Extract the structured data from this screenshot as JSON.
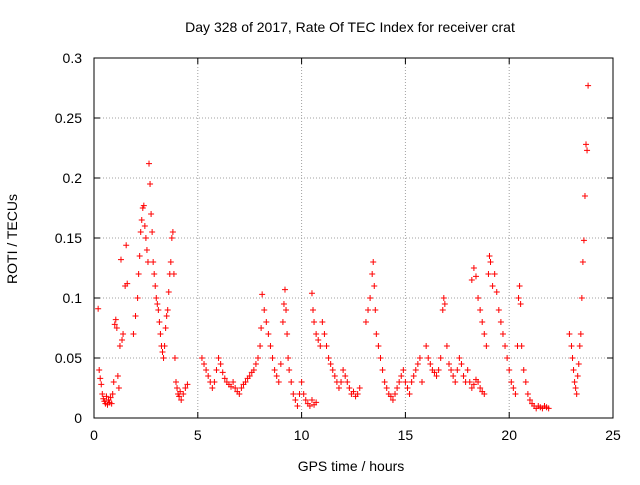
{
  "chart_data": {
    "type": "scatter",
    "title": "Day 328 of 2017, Rate Of TEC Index for receiver crat",
    "xlabel": "GPS time / hours",
    "ylabel": "ROTI / TECUs",
    "xlim": [
      0,
      25
    ],
    "ylim": [
      0,
      0.3
    ],
    "x_ticks": [
      0,
      5,
      10,
      15,
      20,
      25
    ],
    "x_tick_labels": [
      "0",
      "5",
      "10",
      "15",
      "20",
      "25"
    ],
    "y_ticks": [
      0,
      0.05,
      0.1,
      0.15,
      0.2,
      0.25,
      0.3
    ],
    "y_tick_labels": [
      "0",
      "0.05",
      "0.1",
      "0.15",
      "0.2",
      "0.25",
      "0.3"
    ],
    "grid": true,
    "legend": "none",
    "marker": "+",
    "series": [
      {
        "color": "#ff0000",
        "points": [
          [
            0.2,
            0.091
          ],
          [
            0.25,
            0.04
          ],
          [
            0.3,
            0.033
          ],
          [
            0.35,
            0.028
          ],
          [
            0.4,
            0.02
          ],
          [
            0.45,
            0.016
          ],
          [
            0.5,
            0.014
          ],
          [
            0.55,
            0.012
          ],
          [
            0.6,
            0.018
          ],
          [
            0.65,
            0.011
          ],
          [
            0.7,
            0.015
          ],
          [
            0.75,
            0.013
          ],
          [
            0.8,
            0.017
          ],
          [
            0.85,
            0.012
          ],
          [
            0.9,
            0.02
          ],
          [
            0.95,
            0.03
          ],
          [
            1.0,
            0.078
          ],
          [
            1.05,
            0.082
          ],
          [
            1.1,
            0.075
          ],
          [
            1.15,
            0.035
          ],
          [
            1.2,
            0.025
          ],
          [
            1.25,
            0.06
          ],
          [
            1.3,
            0.132
          ],
          [
            1.35,
            0.065
          ],
          [
            1.4,
            0.07
          ],
          [
            1.5,
            0.11
          ],
          [
            1.55,
            0.144
          ],
          [
            1.6,
            0.112
          ],
          [
            1.9,
            0.07
          ],
          [
            2.0,
            0.085
          ],
          [
            2.1,
            0.1
          ],
          [
            2.15,
            0.12
          ],
          [
            2.2,
            0.135
          ],
          [
            2.25,
            0.155
          ],
          [
            2.3,
            0.165
          ],
          [
            2.35,
            0.175
          ],
          [
            2.4,
            0.177
          ],
          [
            2.45,
            0.16
          ],
          [
            2.5,
            0.15
          ],
          [
            2.55,
            0.14
          ],
          [
            2.6,
            0.13
          ],
          [
            2.65,
            0.212
          ],
          [
            2.7,
            0.195
          ],
          [
            2.75,
            0.17
          ],
          [
            2.8,
            0.155
          ],
          [
            2.85,
            0.13
          ],
          [
            2.9,
            0.12
          ],
          [
            2.95,
            0.11
          ],
          [
            3.0,
            0.1
          ],
          [
            3.05,
            0.095
          ],
          [
            3.1,
            0.09
          ],
          [
            3.15,
            0.08
          ],
          [
            3.2,
            0.07
          ],
          [
            3.25,
            0.06
          ],
          [
            3.3,
            0.055
          ],
          [
            3.35,
            0.05
          ],
          [
            3.4,
            0.06
          ],
          [
            3.45,
            0.075
          ],
          [
            3.5,
            0.085
          ],
          [
            3.55,
            0.09
          ],
          [
            3.6,
            0.105
          ],
          [
            3.65,
            0.12
          ],
          [
            3.7,
            0.13
          ],
          [
            3.75,
            0.15
          ],
          [
            3.8,
            0.155
          ],
          [
            3.85,
            0.12
          ],
          [
            3.9,
            0.05
          ],
          [
            3.95,
            0.03
          ],
          [
            4.0,
            0.025
          ],
          [
            4.05,
            0.02
          ],
          [
            4.1,
            0.018
          ],
          [
            4.15,
            0.022
          ],
          [
            4.2,
            0.015
          ],
          [
            4.3,
            0.02
          ],
          [
            4.4,
            0.025
          ],
          [
            4.5,
            0.028
          ],
          [
            5.2,
            0.05
          ],
          [
            5.3,
            0.045
          ],
          [
            5.4,
            0.04
          ],
          [
            5.5,
            0.035
          ],
          [
            5.6,
            0.03
          ],
          [
            5.7,
            0.025
          ],
          [
            5.8,
            0.03
          ],
          [
            5.9,
            0.04
          ],
          [
            6.0,
            0.05
          ],
          [
            6.1,
            0.045
          ],
          [
            6.2,
            0.038
          ],
          [
            6.3,
            0.033
          ],
          [
            6.4,
            0.03
          ],
          [
            6.5,
            0.028
          ],
          [
            6.6,
            0.026
          ],
          [
            6.7,
            0.03
          ],
          [
            6.8,
            0.025
          ],
          [
            6.9,
            0.022
          ],
          [
            7.0,
            0.02
          ],
          [
            7.1,
            0.025
          ],
          [
            7.2,
            0.028
          ],
          [
            7.3,
            0.03
          ],
          [
            7.4,
            0.033
          ],
          [
            7.5,
            0.035
          ],
          [
            7.6,
            0.038
          ],
          [
            7.7,
            0.04
          ],
          [
            7.8,
            0.045
          ],
          [
            7.9,
            0.05
          ],
          [
            8.0,
            0.06
          ],
          [
            8.05,
            0.075
          ],
          [
            8.1,
            0.103
          ],
          [
            8.2,
            0.09
          ],
          [
            8.3,
            0.08
          ],
          [
            8.4,
            0.07
          ],
          [
            8.5,
            0.06
          ],
          [
            8.6,
            0.05
          ],
          [
            8.7,
            0.04
          ],
          [
            8.8,
            0.035
          ],
          [
            8.9,
            0.03
          ],
          [
            9.0,
            0.045
          ],
          [
            9.1,
            0.08
          ],
          [
            9.15,
            0.095
          ],
          [
            9.2,
            0.107
          ],
          [
            9.25,
            0.09
          ],
          [
            9.3,
            0.07
          ],
          [
            9.35,
            0.05
          ],
          [
            9.4,
            0.04
          ],
          [
            9.5,
            0.03
          ],
          [
            9.6,
            0.02
          ],
          [
            9.7,
            0.015
          ],
          [
            9.8,
            0.01
          ],
          [
            9.9,
            0.02
          ],
          [
            10.0,
            0.03
          ],
          [
            10.1,
            0.02
          ],
          [
            10.2,
            0.015
          ],
          [
            10.3,
            0.012
          ],
          [
            10.4,
            0.01
          ],
          [
            10.5,
            0.015
          ],
          [
            10.6,
            0.011
          ],
          [
            10.7,
            0.013
          ],
          [
            10.5,
            0.104
          ],
          [
            10.55,
            0.09
          ],
          [
            10.6,
            0.08
          ],
          [
            10.7,
            0.07
          ],
          [
            10.8,
            0.065
          ],
          [
            10.9,
            0.06
          ],
          [
            11.0,
            0.08
          ],
          [
            11.1,
            0.07
          ],
          [
            11.2,
            0.06
          ],
          [
            11.3,
            0.05
          ],
          [
            11.4,
            0.045
          ],
          [
            11.5,
            0.04
          ],
          [
            11.6,
            0.035
          ],
          [
            11.7,
            0.03
          ],
          [
            11.8,
            0.025
          ],
          [
            11.9,
            0.03
          ],
          [
            12.0,
            0.04
          ],
          [
            12.1,
            0.035
          ],
          [
            12.2,
            0.03
          ],
          [
            12.3,
            0.025
          ],
          [
            12.4,
            0.02
          ],
          [
            12.5,
            0.022
          ],
          [
            12.6,
            0.018
          ],
          [
            12.7,
            0.02
          ],
          [
            12.8,
            0.025
          ],
          [
            13.1,
            0.08
          ],
          [
            13.2,
            0.09
          ],
          [
            13.3,
            0.1
          ],
          [
            13.4,
            0.12
          ],
          [
            13.45,
            0.13
          ],
          [
            13.5,
            0.11
          ],
          [
            13.55,
            0.09
          ],
          [
            13.6,
            0.07
          ],
          [
            13.7,
            0.06
          ],
          [
            13.8,
            0.05
          ],
          [
            13.9,
            0.04
          ],
          [
            14.0,
            0.03
          ],
          [
            14.1,
            0.025
          ],
          [
            14.2,
            0.02
          ],
          [
            14.3,
            0.018
          ],
          [
            14.4,
            0.015
          ],
          [
            14.5,
            0.02
          ],
          [
            14.6,
            0.025
          ],
          [
            14.7,
            0.03
          ],
          [
            14.8,
            0.035
          ],
          [
            14.9,
            0.04
          ],
          [
            15.0,
            0.03
          ],
          [
            15.1,
            0.025
          ],
          [
            15.2,
            0.02
          ],
          [
            15.3,
            0.03
          ],
          [
            15.4,
            0.035
          ],
          [
            15.5,
            0.04
          ],
          [
            15.6,
            0.045
          ],
          [
            15.7,
            0.05
          ],
          [
            15.8,
            0.03
          ],
          [
            16.0,
            0.06
          ],
          [
            16.1,
            0.05
          ],
          [
            16.2,
            0.045
          ],
          [
            16.3,
            0.04
          ],
          [
            16.4,
            0.038
          ],
          [
            16.5,
            0.035
          ],
          [
            16.6,
            0.04
          ],
          [
            16.7,
            0.05
          ],
          [
            16.8,
            0.09
          ],
          [
            16.85,
            0.1
          ],
          [
            16.9,
            0.095
          ],
          [
            17.0,
            0.06
          ],
          [
            17.1,
            0.045
          ],
          [
            17.2,
            0.04
          ],
          [
            17.3,
            0.035
          ],
          [
            17.4,
            0.03
          ],
          [
            17.5,
            0.04
          ],
          [
            17.6,
            0.05
          ],
          [
            17.7,
            0.045
          ],
          [
            17.8,
            0.035
          ],
          [
            17.9,
            0.03
          ],
          [
            18.0,
            0.04
          ],
          [
            18.1,
            0.03
          ],
          [
            18.2,
            0.025
          ],
          [
            18.3,
            0.028
          ],
          [
            18.4,
            0.032
          ],
          [
            18.5,
            0.03
          ],
          [
            18.6,
            0.025
          ],
          [
            18.7,
            0.022
          ],
          [
            18.8,
            0.02
          ],
          [
            18.2,
            0.115
          ],
          [
            18.3,
            0.125
          ],
          [
            18.4,
            0.118
          ],
          [
            18.5,
            0.1
          ],
          [
            18.6,
            0.09
          ],
          [
            18.7,
            0.08
          ],
          [
            18.8,
            0.07
          ],
          [
            18.9,
            0.06
          ],
          [
            19.0,
            0.12
          ],
          [
            19.05,
            0.135
          ],
          [
            19.1,
            0.13
          ],
          [
            19.2,
            0.11
          ],
          [
            19.3,
            0.12
          ],
          [
            19.4,
            0.105
          ],
          [
            19.5,
            0.09
          ],
          [
            19.6,
            0.08
          ],
          [
            19.7,
            0.07
          ],
          [
            19.8,
            0.06
          ],
          [
            19.9,
            0.05
          ],
          [
            20.0,
            0.04
          ],
          [
            20.1,
            0.03
          ],
          [
            20.2,
            0.025
          ],
          [
            20.3,
            0.02
          ],
          [
            20.4,
            0.06
          ],
          [
            20.45,
            0.1
          ],
          [
            20.5,
            0.11
          ],
          [
            20.55,
            0.095
          ],
          [
            20.6,
            0.06
          ],
          [
            20.7,
            0.04
          ],
          [
            20.8,
            0.03
          ],
          [
            20.9,
            0.02
          ],
          [
            21.0,
            0.015
          ],
          [
            21.1,
            0.012
          ],
          [
            21.2,
            0.01
          ],
          [
            21.3,
            0.008
          ],
          [
            21.4,
            0.01
          ],
          [
            21.5,
            0.009
          ],
          [
            21.6,
            0.008
          ],
          [
            21.7,
            0.01
          ],
          [
            21.8,
            0.009
          ],
          [
            21.9,
            0.008
          ],
          [
            22.9,
            0.07
          ],
          [
            23.0,
            0.06
          ],
          [
            23.05,
            0.05
          ],
          [
            23.1,
            0.04
          ],
          [
            23.15,
            0.03
          ],
          [
            23.2,
            0.025
          ],
          [
            23.25,
            0.02
          ],
          [
            23.3,
            0.035
          ],
          [
            23.35,
            0.045
          ],
          [
            23.4,
            0.06
          ],
          [
            23.45,
            0.07
          ],
          [
            23.5,
            0.1
          ],
          [
            23.55,
            0.13
          ],
          [
            23.6,
            0.148
          ],
          [
            23.65,
            0.185
          ],
          [
            23.7,
            0.228
          ],
          [
            23.75,
            0.223
          ],
          [
            23.8,
            0.277
          ]
        ]
      }
    ]
  }
}
